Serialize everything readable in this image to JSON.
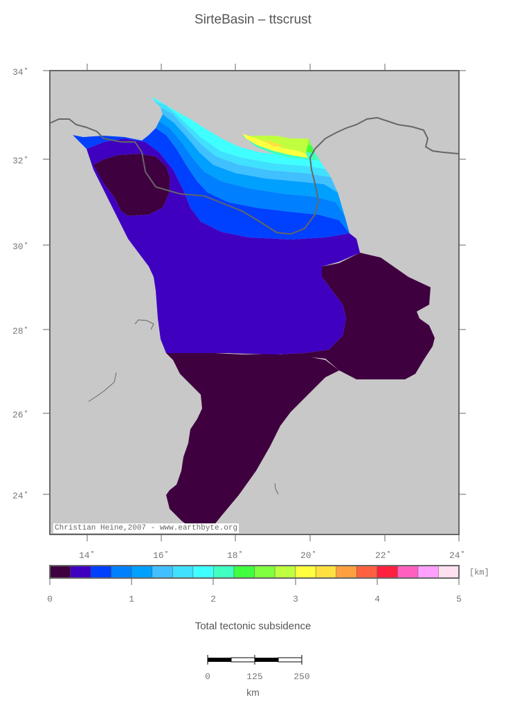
{
  "title": "SirteBasin – ttscrust",
  "map": {
    "credit": "Christian Heine,2007 - www.earthbyte.org",
    "background_color": "#c8c8c8",
    "lat_labels": [
      "34˚",
      "32˚",
      "30˚",
      "28˚",
      "26˚",
      "24˚"
    ],
    "lon_labels": [
      "14˚",
      "16˚",
      "18˚",
      "20˚",
      "22˚",
      "24˚"
    ],
    "lat_range": [
      23,
      34
    ],
    "lon_range": [
      13,
      24
    ]
  },
  "colorbar": {
    "unit": "[km]",
    "tick_labels": [
      "0",
      "1",
      "2",
      "3",
      "4",
      "5"
    ],
    "range": [
      0,
      5
    ],
    "colors": [
      "#3f003f",
      "#3f00c0",
      "#0040ff",
      "#0080ff",
      "#00a0ff",
      "#40c0ff",
      "#40e0ff",
      "#40ffff",
      "#40ffc0",
      "#40ff40",
      "#80ff40",
      "#c0ff40",
      "#ffff40",
      "#ffe040",
      "#ffa040",
      "#ff6040",
      "#ff2040",
      "#ff60c0",
      "#ffa0ff",
      "#ffe0f0"
    ]
  },
  "legend_title": "Total tectonic subsidence",
  "scalebar": {
    "labels": [
      "0",
      "125",
      "250"
    ],
    "unit": "km"
  }
}
